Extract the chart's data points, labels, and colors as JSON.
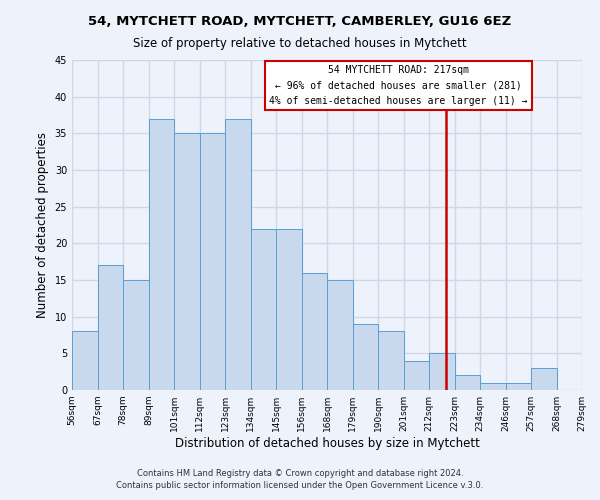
{
  "title_line1": "54, MYTCHETT ROAD, MYTCHETT, CAMBERLEY, GU16 6EZ",
  "title_line2": "Size of property relative to detached houses in Mytchett",
  "xlabel": "Distribution of detached houses by size in Mytchett",
  "ylabel": "Number of detached properties",
  "bin_labels": [
    "56sqm",
    "67sqm",
    "78sqm",
    "89sqm",
    "101sqm",
    "112sqm",
    "123sqm",
    "134sqm",
    "145sqm",
    "156sqm",
    "168sqm",
    "179sqm",
    "190sqm",
    "201sqm",
    "212sqm",
    "223sqm",
    "234sqm",
    "246sqm",
    "257sqm",
    "268sqm",
    "279sqm"
  ],
  "values": [
    8,
    17,
    15,
    37,
    35,
    35,
    37,
    22,
    22,
    16,
    15,
    9,
    8,
    4,
    5,
    2,
    1,
    1,
    3,
    0
  ],
  "bar_color": "#c8d9ee",
  "bar_edge_color": "#5a9fd4",
  "vline_x_index": 14.65,
  "vline_color": "#cc0000",
  "ylim": [
    0,
    45
  ],
  "yticks": [
    0,
    5,
    10,
    15,
    20,
    25,
    30,
    35,
    40,
    45
  ],
  "annotation_title": "54 MYTCHETT ROAD: 217sqm",
  "annotation_line1": "← 96% of detached houses are smaller (281)",
  "annotation_line2": "4% of semi-detached houses are larger (11) →",
  "annotation_box_color": "#ffffff",
  "annotation_box_edge": "#cc0000",
  "footer_line1": "Contains HM Land Registry data © Crown copyright and database right 2024.",
  "footer_line2": "Contains public sector information licensed under the Open Government Licence v.3.0.",
  "background_color": "#eef2fa",
  "grid_color": "#d0d8e8",
  "title1_fontsize": 9.5,
  "title2_fontsize": 8.5
}
